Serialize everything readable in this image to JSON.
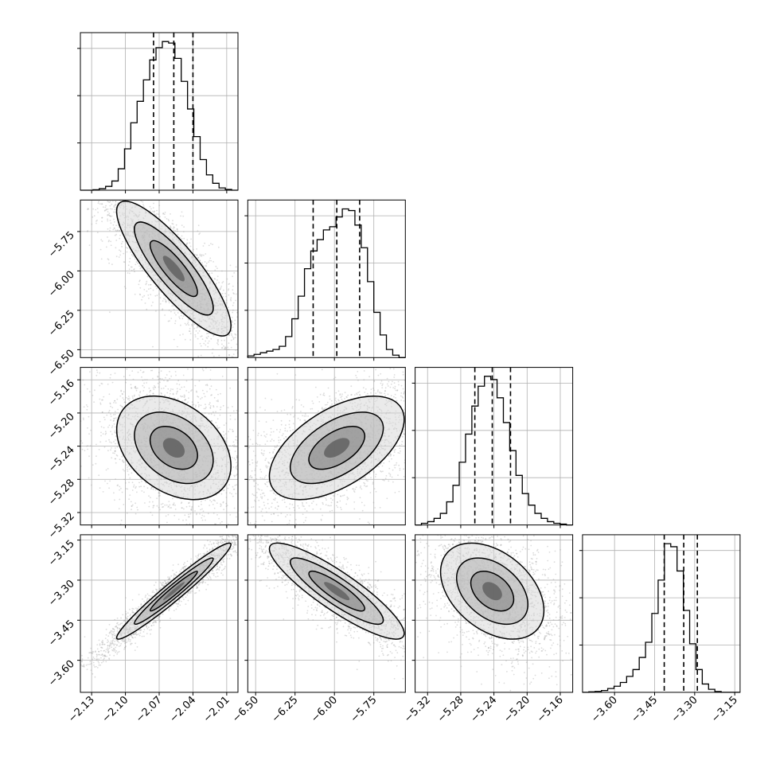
{
  "colors": {
    "grid": "#b0b0b0",
    "axes": "#000000",
    "quantile_line": "#000000",
    "scatter_point": "#9a9a9a",
    "density_fill": "#5a5a5a"
  },
  "chart_data": {
    "type": "corner",
    "grid": true,
    "parameters": [
      {
        "range": [
          -2.14,
          -2.0
        ],
        "ticks": [
          -2.13,
          -2.1,
          -2.07,
          -2.04,
          -2.01
        ],
        "tick_labels": [
          "−2.13",
          "−2.10",
          "−2.07",
          "−2.04",
          "−2.01"
        ],
        "quantiles": [
          -2.075,
          -2.057,
          -2.04
        ],
        "hist_counts": [
          0,
          0,
          0.3,
          1,
          2.5,
          6,
          14,
          27,
          44,
          58,
          72,
          85,
          93,
          97,
          96,
          86,
          71,
          53,
          35,
          20,
          10,
          4.5,
          1.5,
          0.5,
          0
        ]
      },
      {
        "range": [
          -6.55,
          -5.55
        ],
        "ticks": [
          -6.5,
          -6.25,
          -6.0,
          -5.75
        ],
        "tick_labels": [
          "−6.50",
          "−6.25",
          "−6.00",
          "−5.75"
        ],
        "quantiles": [
          -6.135,
          -5.985,
          -5.84
        ],
        "hist_counts": [
          1,
          2,
          3,
          4,
          5,
          7,
          13,
          24,
          38,
          55,
          66,
          73,
          79,
          81,
          87,
          92,
          91,
          82,
          68,
          47,
          28,
          14,
          5,
          1.5,
          0
        ]
      },
      {
        "range": [
          -5.335,
          -5.145
        ],
        "ticks": [
          -5.32,
          -5.28,
          -5.24,
          -5.2,
          -5.16
        ],
        "tick_labels": [
          "−5.32",
          "−5.28",
          "−5.24",
          "−5.20",
          "−5.16"
        ],
        "quantiles": [
          -5.263,
          -5.242,
          -5.22
        ],
        "hist_counts": [
          0,
          1,
          2,
          4,
          7,
          14,
          24,
          38,
          55,
          72,
          84,
          90,
          88,
          77,
          62,
          45,
          30,
          19,
          12,
          7,
          4,
          2,
          1,
          0.5,
          0
        ]
      },
      {
        "range": [
          -3.72,
          -3.13
        ],
        "ticks": [
          -3.6,
          -3.45,
          -3.3,
          -3.15
        ],
        "tick_labels": [
          "−3.60",
          "−3.45",
          "−3.30",
          "−3.15"
        ],
        "quantiles": [
          -3.414,
          -3.341,
          -3.29
        ],
        "hist_counts": [
          0,
          0.3,
          0.6,
          1.2,
          2.5,
          4,
          6.5,
          10.5,
          15,
          23,
          33,
          52,
          74,
          98,
          96,
          80,
          54,
          32,
          15,
          5.5,
          2,
          0.5,
          0,
          0,
          0
        ]
      }
    ],
    "pairs": [
      {
        "row": 1,
        "col": 0,
        "rho": -0.85
      },
      {
        "row": 2,
        "col": 0,
        "rho": -0.35
      },
      {
        "row": 2,
        "col": 1,
        "rho": 0.55
      },
      {
        "row": 3,
        "col": 0,
        "rho": 0.97
      },
      {
        "row": 3,
        "col": 1,
        "rho": -0.88
      },
      {
        "row": 3,
        "col": 2,
        "rho": -0.4
      }
    ]
  }
}
